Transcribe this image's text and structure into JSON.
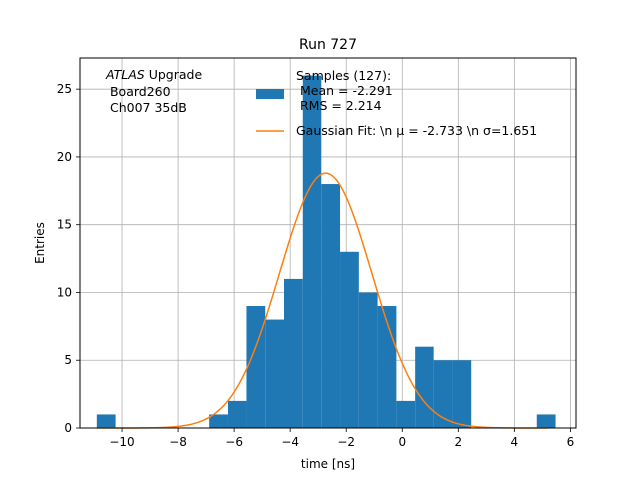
{
  "chart_data": {
    "type": "bar",
    "title": "Run 727",
    "xlabel": "time [ns]",
    "ylabel": "Entries",
    "xlim": [
      -11.5,
      6.2
    ],
    "ylim": [
      0,
      27.3
    ],
    "xticks": [
      {
        "value": -10,
        "label": "−10"
      },
      {
        "value": -8,
        "label": "−8"
      },
      {
        "value": -6,
        "label": "−6"
      },
      {
        "value": -4,
        "label": "−4"
      },
      {
        "value": -2,
        "label": "−2"
      },
      {
        "value": 0,
        "label": "0"
      },
      {
        "value": 2,
        "label": "2"
      },
      {
        "value": 4,
        "label": "4"
      },
      {
        "value": 6,
        "label": "6"
      }
    ],
    "yticks": [
      {
        "value": 0,
        "label": "0"
      },
      {
        "value": 5,
        "label": "5"
      },
      {
        "value": 10,
        "label": "10"
      },
      {
        "value": 15,
        "label": "15"
      },
      {
        "value": 20,
        "label": "20"
      },
      {
        "value": 25,
        "label": "25"
      }
    ],
    "grid": true,
    "bar_color": "#1f77b4",
    "fit_color": "#ff7f0e",
    "histogram": {
      "name": "Samples (127):\n Mean = -2.291\n RMS = 2.214",
      "bins": [
        {
          "x0": -10.9,
          "x1": -10.23,
          "count": 1
        },
        {
          "x0": -6.89,
          "x1": -6.22,
          "count": 1
        },
        {
          "x0": -6.22,
          "x1": -5.56,
          "count": 2
        },
        {
          "x0": -5.56,
          "x1": -4.89,
          "count": 9
        },
        {
          "x0": -4.89,
          "x1": -4.22,
          "count": 8
        },
        {
          "x0": -4.22,
          "x1": -3.55,
          "count": 11
        },
        {
          "x0": -3.55,
          "x1": -2.89,
          "count": 26
        },
        {
          "x0": -2.89,
          "x1": -2.22,
          "count": 18
        },
        {
          "x0": -2.22,
          "x1": -1.55,
          "count": 13
        },
        {
          "x0": -1.55,
          "x1": -0.88,
          "count": 10
        },
        {
          "x0": -0.88,
          "x1": -0.21,
          "count": 9
        },
        {
          "x0": -0.21,
          "x1": 0.46,
          "count": 2
        },
        {
          "x0": 0.46,
          "x1": 1.12,
          "count": 6
        },
        {
          "x0": 1.12,
          "x1": 1.79,
          "count": 5
        },
        {
          "x0": 1.79,
          "x1": 2.46,
          "count": 5
        },
        {
          "x0": 4.8,
          "x1": 5.47,
          "count": 1
        }
      ]
    },
    "gaussian_fit": {
      "name": "Gaussian Fit: \\n μ = -2.733 \\n σ=1.651",
      "mu": -2.733,
      "sigma": 1.651,
      "amplitude": 18.8,
      "x_range": [
        -10.9,
        5.2
      ]
    },
    "legend_placement": "upper-center",
    "annotation": {
      "italic_part": "ATLAS",
      "rest_first_line": " Upgrade",
      "lines": [
        " Board260",
        " Ch007 35dB"
      ]
    }
  }
}
